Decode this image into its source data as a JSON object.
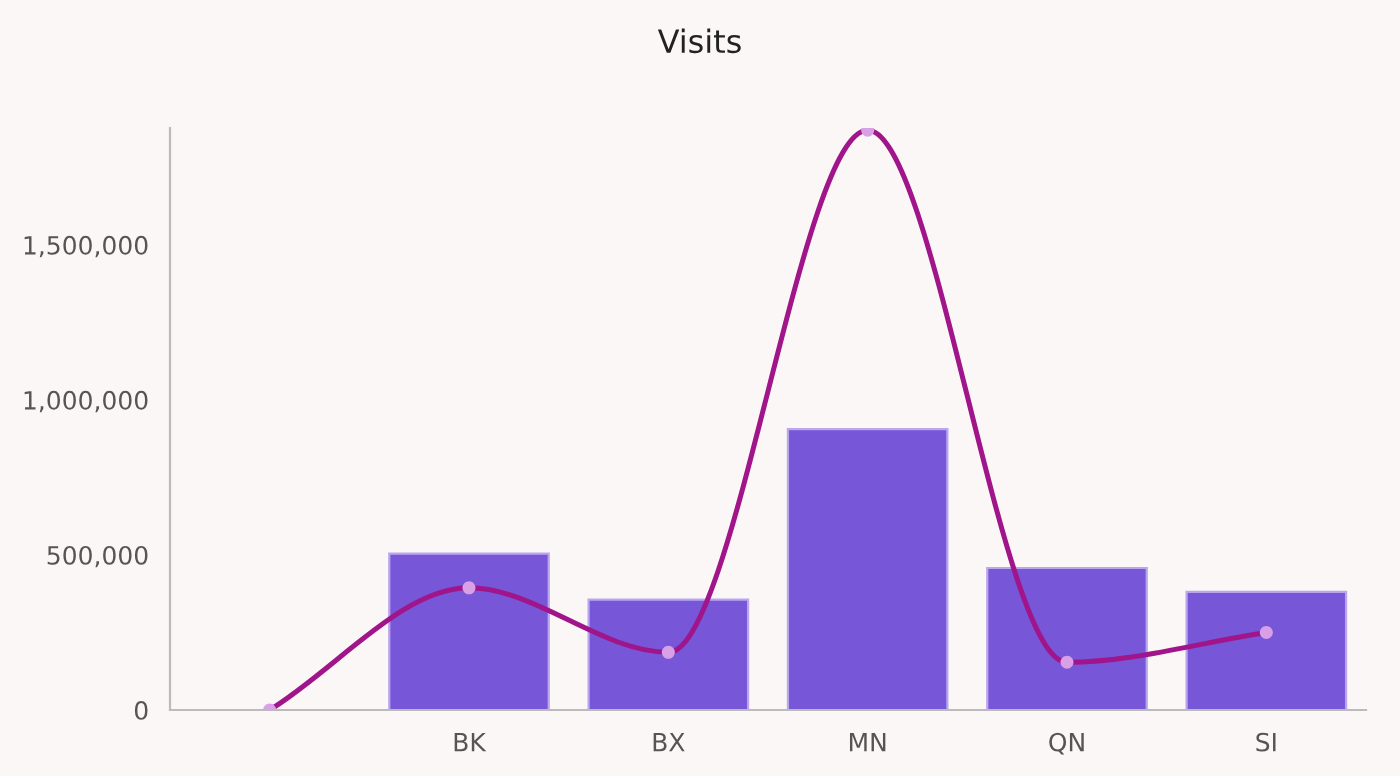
{
  "chart_data": {
    "type": "bar",
    "title": "Visits",
    "categories": [
      null,
      "BK",
      "BX",
      "MN",
      "QN",
      "SI"
    ],
    "series": [
      {
        "color": "#7856d8",
        "values": [
          null,
          504000,
          356000,
          906000,
          458000,
          381000
        ]
      },
      {
        "type": "line",
        "color": "#a0158a",
        "colors": [
          "#d9a0e8",
          "#d9a0e8",
          "#d9a0e8",
          "#d9a0e8",
          "#d9a0e8",
          "#d9a0e8"
        ],
        "marker": "circle",
        "values": [
          0,
          394000,
          186000,
          1870000,
          154000,
          250000
        ]
      }
    ],
    "ylim": [
      0,
      1877000
    ],
    "yticks": [
      {
        "value": 0,
        "label": "0"
      },
      {
        "value": 500000,
        "label": "500,000"
      },
      {
        "value": 1000000,
        "label": "1,000,000"
      },
      {
        "value": 1500000,
        "label": "1,500,000"
      }
    ],
    "grid": false,
    "legend": false
  }
}
